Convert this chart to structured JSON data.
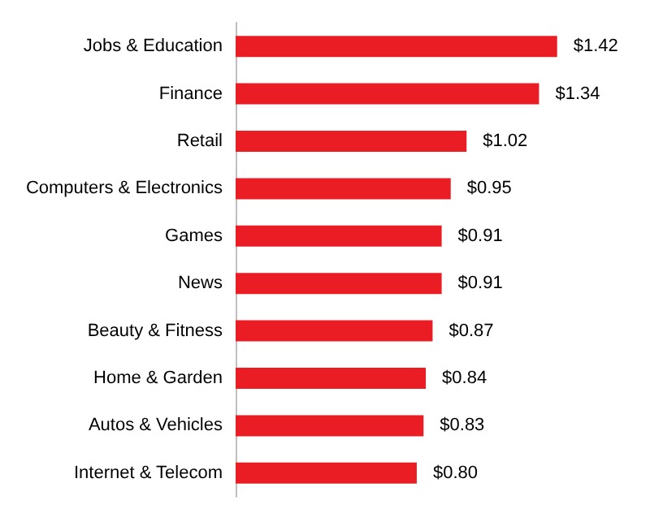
{
  "chart_data": {
    "type": "bar",
    "orientation": "horizontal",
    "categories": [
      "Jobs & Education",
      "Finance",
      "Retail",
      "Computers & Electronics",
      "Games",
      "News",
      "Beauty & Fitness",
      "Home & Garden",
      "Autos & Vehicles",
      "Internet & Telecom"
    ],
    "values": [
      1.42,
      1.34,
      1.02,
      0.95,
      0.91,
      0.91,
      0.87,
      0.84,
      0.83,
      0.8
    ],
    "value_labels": [
      "$1.42",
      "$1.34",
      "$1.02",
      "$0.95",
      "$0.91",
      "$0.91",
      "$0.87",
      "$0.84",
      "$0.83",
      "$0.80"
    ],
    "color": "#ea1c24",
    "tick_labels": "y"
  }
}
